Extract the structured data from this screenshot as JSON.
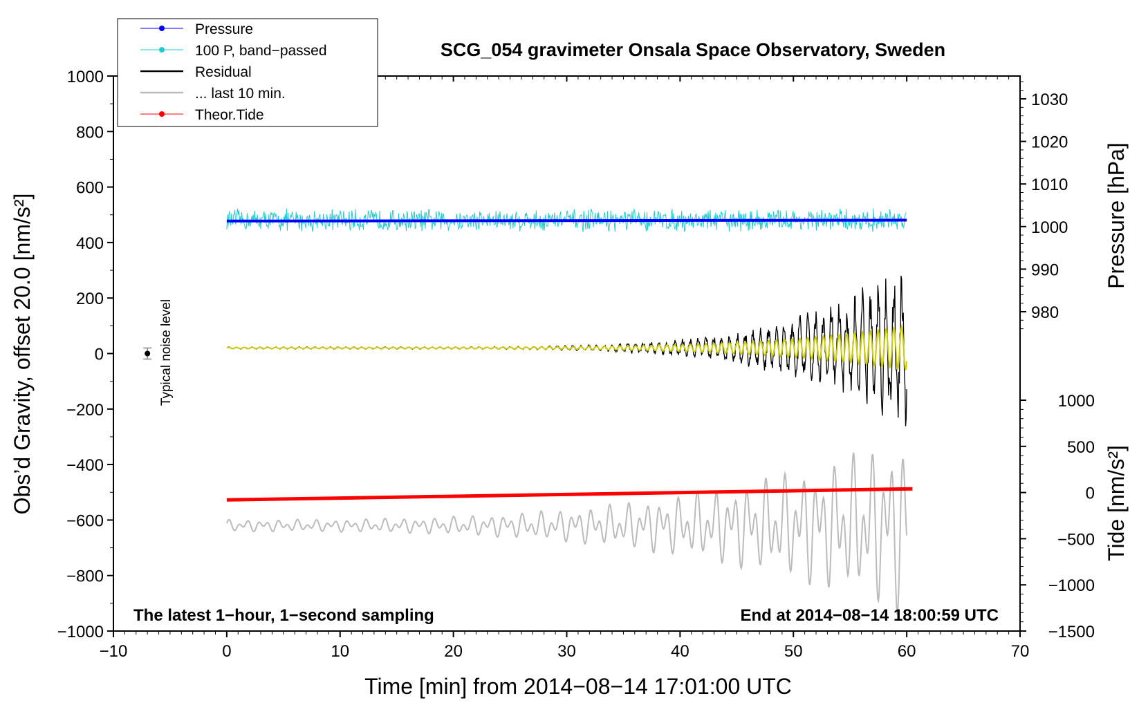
{
  "chart_data": {
    "type": "line",
    "title": "SCG_054 gravimeter Onsala Space Observatory, Sweden",
    "xlabel": "Time [min] from 2014−08−14 17:01:00 UTC",
    "ylabel_left": "Obs’d Gravity, offset 20.0 [nm/s²]",
    "ylabel_right_pressure": "Pressure [hPa]",
    "ylabel_right_tide": "Tide [nm/s²]",
    "xlim": [
      -10,
      70
    ],
    "ylim": [
      -1000,
      1000
    ],
    "pressure_axis": {
      "range": [
        975,
        1034
      ],
      "ticks": [
        980,
        990,
        1000,
        1010,
        1020,
        1030
      ]
    },
    "tide_axis": {
      "range": [
        -1500,
        1000
      ],
      "ticks": [
        -1500,
        -1000,
        -500,
        0,
        500,
        1000
      ]
    },
    "x_ticks": [
      -10,
      0,
      10,
      20,
      30,
      40,
      50,
      60,
      70
    ],
    "x_tick_labels": [
      "−10",
      "0",
      "10",
      "20",
      "30",
      "40",
      "50",
      "60",
      "70"
    ],
    "y_ticks": [
      -1000,
      -800,
      -600,
      -400,
      -200,
      0,
      200,
      400,
      600,
      800,
      1000
    ],
    "y_tick_labels": [
      "−1000",
      "−800",
      "−600",
      "−400",
      "−200",
      "0",
      "200",
      "400",
      "600",
      "800",
      "1000"
    ],
    "pressure_tick_labels": [
      "980",
      "990",
      "1000",
      "1010",
      "1020",
      "1030"
    ],
    "tide_tick_labels": [
      "−1500",
      "−1000",
      "−500",
      "0",
      "500",
      "1000"
    ],
    "annotation_left": "The latest 1−hour, 1−second sampling",
    "annotation_right": "End at 2014−08−14 18:00:59 UTC",
    "noise_label": "Typical noise level",
    "noise_marker": {
      "x": -7,
      "y": 0,
      "err": 20
    },
    "legend": [
      {
        "label": "Pressure",
        "color": "#0000ff",
        "marker": true
      },
      {
        "label": "100 P, band−passed",
        "color": "#22cccc",
        "marker": true
      },
      {
        "label": "Residual",
        "color": "#000000",
        "marker": false
      },
      {
        "label": "... last 10 min.",
        "color": "#bbbbbb",
        "marker": false
      },
      {
        "label": "Theor.Tide",
        "color": "#ff0000",
        "marker": true
      }
    ],
    "series": [
      {
        "name": "Pressure",
        "axis": "pressure",
        "color": "#0000ff",
        "x": [
          0,
          60
        ],
        "values": [
          1001.3,
          1001.5
        ]
      },
      {
        "name": "100 P, band-passed",
        "axis": "left",
        "color": "#22cccc",
        "x": [
          0,
          60
        ],
        "baseline": 480,
        "amplitude": 45
      },
      {
        "name": "Residual",
        "axis": "left",
        "color": "#000000",
        "x": [
          0,
          60
        ],
        "baseline": 20,
        "envelope_end": 330
      },
      {
        "name": "Residual (filtered)",
        "axis": "left",
        "color": "#cccc00",
        "x": [
          0,
          60
        ],
        "baseline": 20,
        "envelope_end": 80
      },
      {
        "name": "... last 10 min.",
        "axis": "left",
        "color": "#bbbbbb",
        "x": [
          0,
          60
        ],
        "baseline": -620,
        "envelope_end": 300
      },
      {
        "name": "Theor.Tide",
        "axis": "tide",
        "color": "#ff0000",
        "x": [
          0,
          60.5
        ],
        "values": [
          -80,
          40
        ]
      }
    ]
  }
}
